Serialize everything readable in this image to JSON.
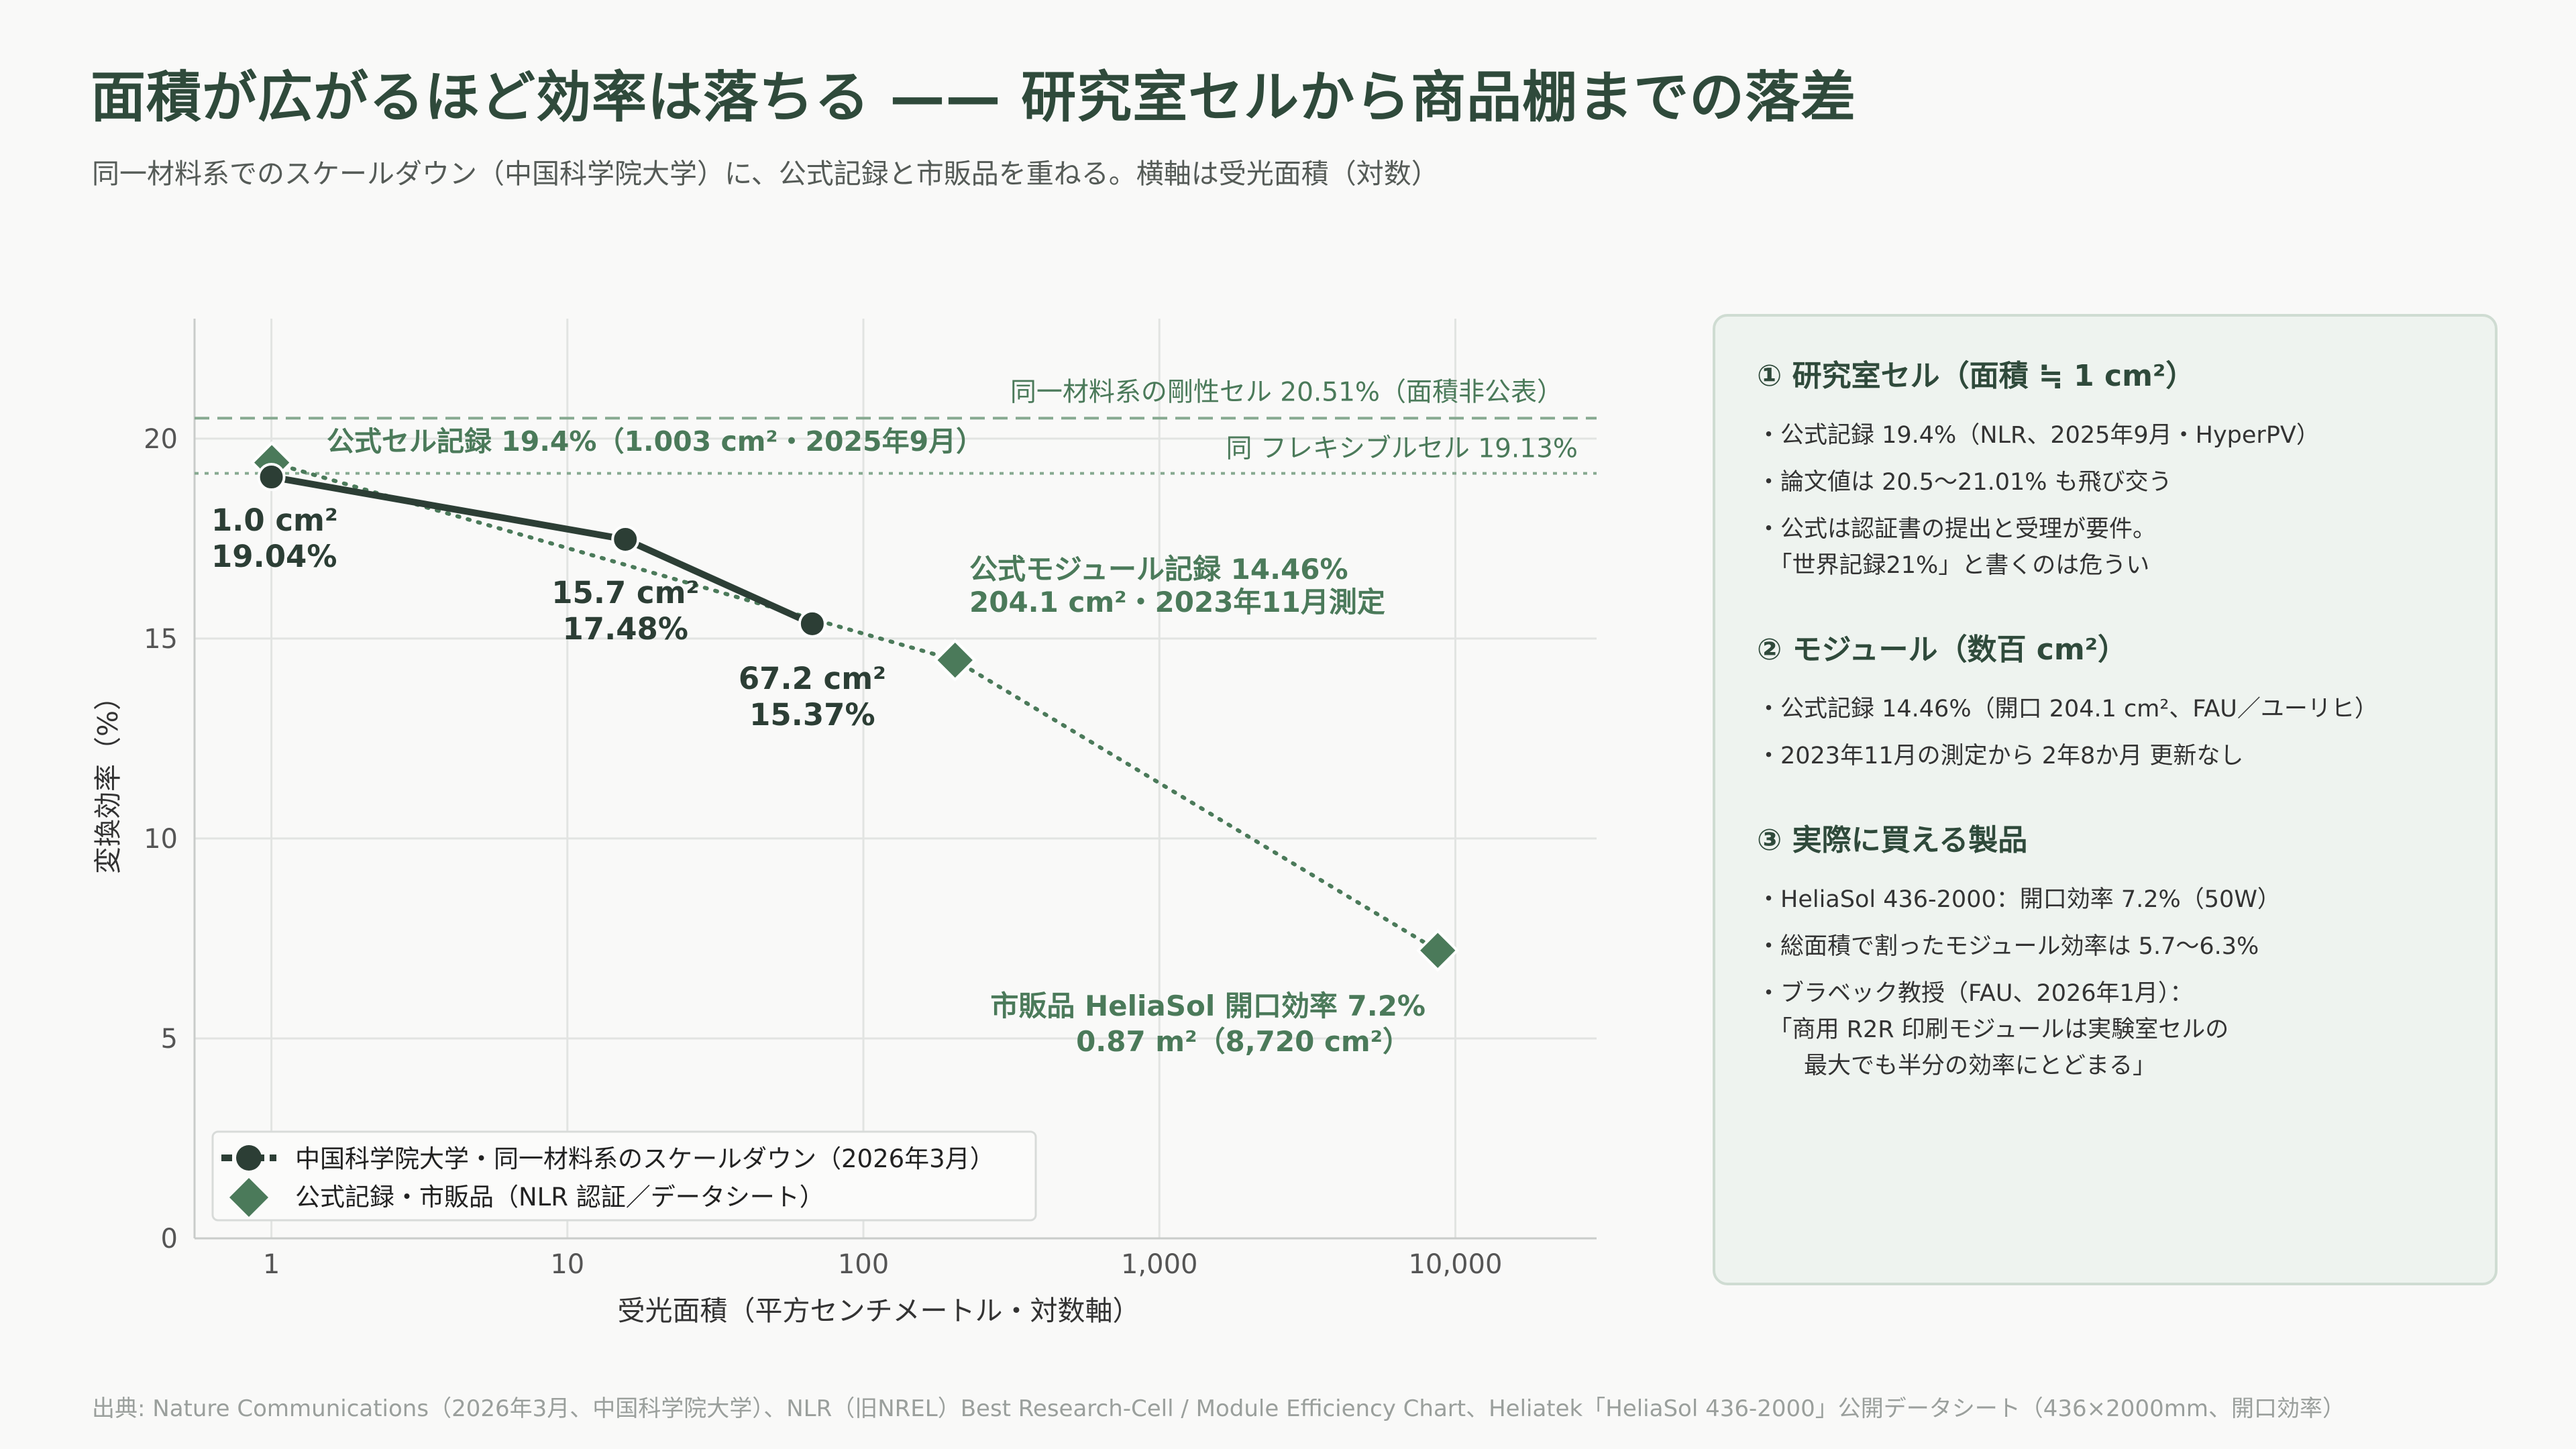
{
  "title": "面積が広がるほど効率は落ちる —— 研究室セルから商品棚までの落差",
  "subtitle": "同一材料系でのスケールダウン（中国科学院大学）に、公式記録と市販品を重ねる。横軸は受光面積（対数）",
  "footer": "出典: Nature Communications（2026年3月、中国科学院大学）、NLR（旧NREL）Best Research-Cell / Module Efficiency Chart、Heliatek「HeliaSol 436-2000」公開データシート（436×2000mm、開口効率）",
  "colors": {
    "dark_series": "#2c3e35",
    "green_series": "#4b7a5a",
    "annotation": "#4b7a5a",
    "grid": "#e2e4e2",
    "panel_bg": "#eef3ef"
  },
  "chart_data": {
    "type": "line",
    "xlabel": "受光面積（平方センチメートル・対数軸）",
    "ylabel": "変換効率（%）",
    "x_scale": "log",
    "xlim": [
      0.55,
      30000
    ],
    "ylim": [
      0,
      23
    ],
    "x_ticks": [
      1,
      10,
      100,
      1000,
      10000
    ],
    "x_tick_labels": [
      "1",
      "10",
      "100",
      "1,000",
      "10,000"
    ],
    "y_ticks": [
      0,
      5,
      10,
      15,
      20
    ],
    "y_tick_labels": [
      "0",
      "5",
      "10",
      "15",
      "20"
    ],
    "grid": true,
    "legend_position": "bottom-left",
    "series": [
      {
        "name": "中国科学院大学・同一材料系のスケールダウン（2026年3月）",
        "marker": "circle",
        "line": "solid",
        "points": [
          {
            "x": 1.0,
            "y": 19.04,
            "label1": "1.0 cm²",
            "label2": "19.04%"
          },
          {
            "x": 15.7,
            "y": 17.48,
            "label1": "15.7 cm²",
            "label2": "17.48%"
          },
          {
            "x": 67.2,
            "y": 15.37,
            "label1": "67.2 cm²",
            "label2": "15.37%"
          }
        ]
      },
      {
        "name": "公式記録・市販品（NLR 認証／データシート）",
        "marker": "diamond",
        "line": "dotted",
        "points": [
          {
            "x": 1.003,
            "y": 19.4,
            "label1": "公式セル記録 19.4%（1.003 cm²・2025年9月）",
            "label2": ""
          },
          {
            "x": 204.1,
            "y": 14.46,
            "label1": "公式モジュール記録 14.46%",
            "label2": "204.1 cm²・2023年11月測定"
          },
          {
            "x": 8720,
            "y": 7.2,
            "label1": "市販品 HeliaSol 開口効率 7.2%",
            "label2": "0.87 m²（8,720 cm²）"
          }
        ]
      }
    ],
    "reference_lines": [
      {
        "y": 20.51,
        "label": "同一材料系の剛性セル 20.51%（面積非公表）",
        "style": "dashed"
      },
      {
        "y": 19.13,
        "label": "同 フレキシブルセル 19.13%",
        "style": "dotted"
      }
    ]
  },
  "panel": {
    "sections": [
      {
        "heading": "① 研究室セル（面積 ≒ 1 cm²）",
        "bullets": [
          "・公式記録 19.4%（NLR、2025年9月・HyperPV）",
          "・論文値は 20.5〜21.01% も飛び交う",
          "・公式は認証書の提出と受理が要件。\n　「世界記録21%」と書くのは危うい"
        ]
      },
      {
        "heading": "② モジュール（数百 cm²）",
        "bullets": [
          "・公式記録 14.46%（開口 204.1 cm²、FAU／ユーリヒ）",
          "・2023年11月の測定から 2年8か月 更新なし"
        ]
      },
      {
        "heading": "③ 実際に買える製品",
        "bullets": [
          "・HeliaSol 436-2000：開口効率 7.2%（50W）",
          "・総面積で割ったモジュール効率は 5.7〜6.3%",
          "・ブラベック教授（FAU、2026年1月）：\n　「商用 R2R 印刷モジュールは実験室セルの\n　　最大でも半分の効率にとどまる」"
        ]
      }
    ]
  }
}
